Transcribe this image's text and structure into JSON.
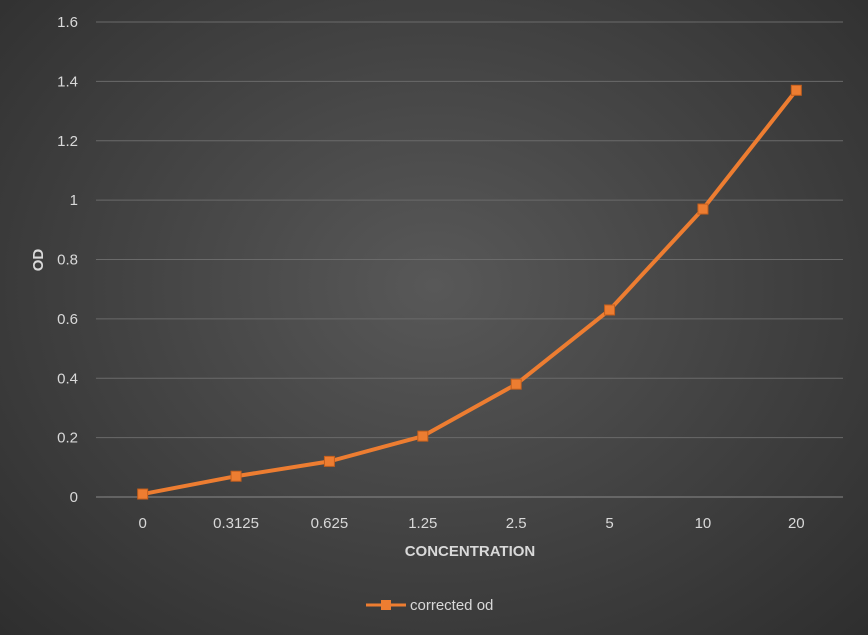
{
  "chart_data": {
    "type": "line",
    "categories": [
      "0",
      "0.3125",
      "0.625",
      "1.25",
      "2.5",
      "5",
      "10",
      "20"
    ],
    "series": [
      {
        "name": "corrected od",
        "values": [
          0.01,
          0.07,
          0.12,
          0.205,
          0.38,
          0.63,
          0.97,
          1.37
        ],
        "color": "#ed7d31"
      }
    ],
    "xlabel": "CONCENTRATION",
    "ylabel": "OD",
    "ylim": [
      0,
      1.6
    ],
    "yticks": [
      "0",
      "0.2",
      "0.4",
      "0.6",
      "0.8",
      "1",
      "1.2",
      "1.4",
      "1.6"
    ],
    "grid": true,
    "legend_position": "bottom"
  }
}
